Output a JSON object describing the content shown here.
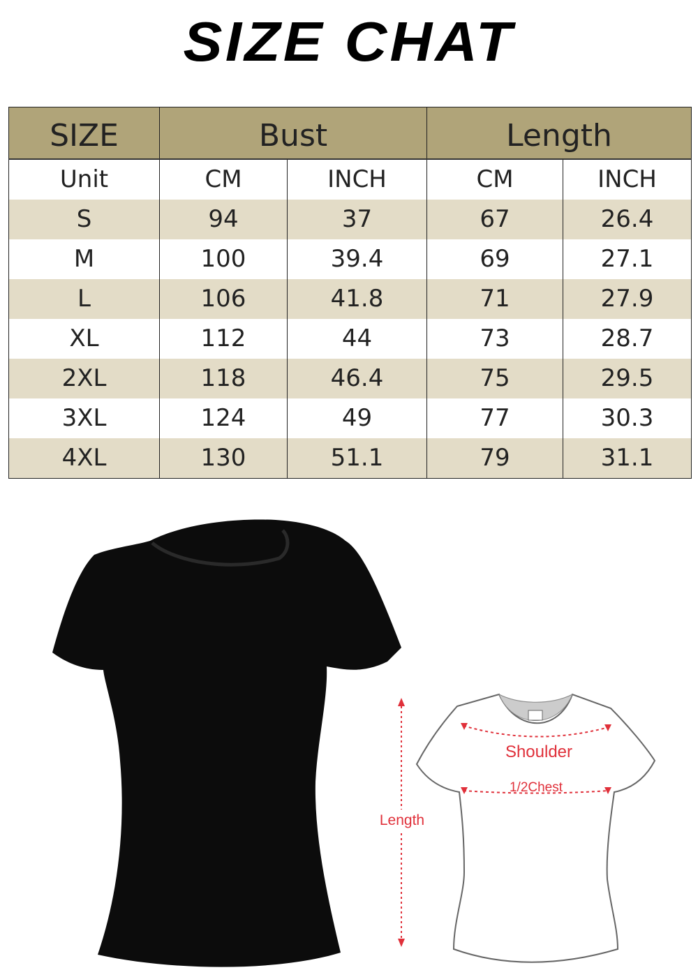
{
  "title": "SIZE CHAT",
  "table": {
    "group_headers": [
      "SIZE",
      "Bust",
      "Length"
    ],
    "unit_row": [
      "Unit",
      "CM",
      "INCH",
      "CM",
      "INCH"
    ],
    "rows": [
      [
        "S",
        "94",
        "37",
        "67",
        "26.4"
      ],
      [
        "M",
        "100",
        "39.4",
        "69",
        "27.1"
      ],
      [
        "L",
        "106",
        "41.8",
        "71",
        "27.9"
      ],
      [
        "XL",
        "112",
        "44",
        "73",
        "28.7"
      ],
      [
        "2XL",
        "118",
        "46.4",
        "75",
        "29.5"
      ],
      [
        "3XL",
        "124",
        "49",
        "77",
        "30.3"
      ],
      [
        "4XL",
        "130",
        "51.1",
        "79",
        "31.1"
      ]
    ],
    "colors": {
      "header": "#b0a479",
      "alt_row": "#e3dcc7",
      "row": "#ffffff"
    }
  },
  "diagram": {
    "labels": {
      "shoulder": "Shoulder",
      "chest": "1/2Chest",
      "length": "Length"
    },
    "accent": "#e0303a"
  }
}
